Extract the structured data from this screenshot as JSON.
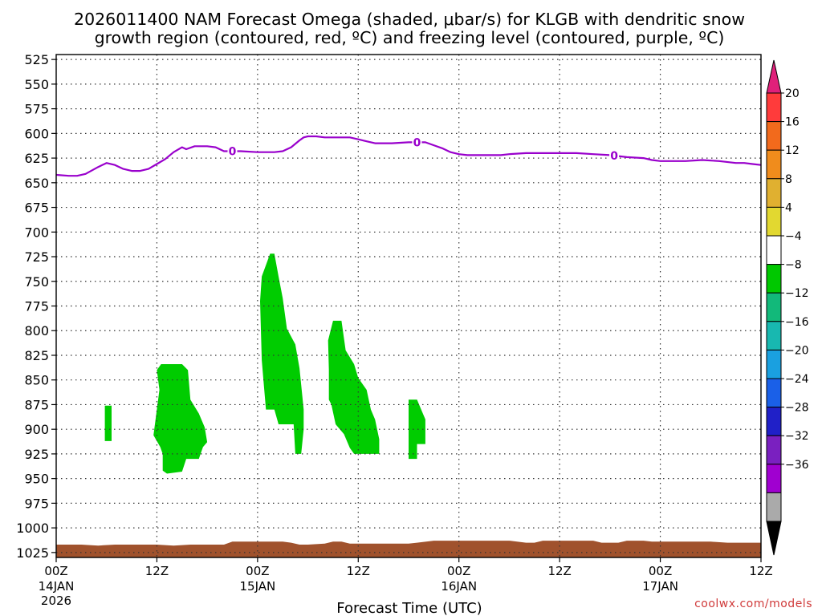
{
  "chart_data": {
    "type": "heatmap",
    "title": "2026011400 NAM Forecast Omega (shaded, μbar/s) for KLGB with dendritic snow",
    "subtitle": "growth region (contoured, red, ºC) and freezing level (contoured, purple, ºC)",
    "xlabel": "Forecast Time (UTC)",
    "ylabel": "",
    "credit": "coolwx.com/models",
    "xlim": [
      0,
      84
    ],
    "ylim": [
      1030,
      520
    ],
    "grid": true,
    "y_ticks": [
      525,
      550,
      575,
      600,
      625,
      650,
      675,
      700,
      725,
      750,
      775,
      800,
      825,
      850,
      875,
      900,
      925,
      950,
      975,
      1000,
      1025
    ],
    "x_ticks": [
      {
        "x": 0,
        "top": "00Z",
        "mid": "14JAN",
        "bot": "2026"
      },
      {
        "x": 12,
        "top": "12Z",
        "mid": "",
        "bot": ""
      },
      {
        "x": 24,
        "top": "00Z",
        "mid": "15JAN",
        "bot": ""
      },
      {
        "x": 36,
        "top": "12Z",
        "mid": "",
        "bot": ""
      },
      {
        "x": 48,
        "top": "00Z",
        "mid": "16JAN",
        "bot": ""
      },
      {
        "x": 60,
        "top": "12Z",
        "mid": "",
        "bot": ""
      },
      {
        "x": 72,
        "top": "00Z",
        "mid": "17JAN",
        "bot": ""
      },
      {
        "x": 84,
        "top": "12Z",
        "mid": "",
        "bot": ""
      }
    ],
    "freezing_level": {
      "label": "0",
      "color": "#9900cc",
      "label_x": [
        21.0,
        43.0,
        66.5
      ],
      "x": [
        0,
        1.5,
        2.5,
        3.5,
        5,
        6,
        7,
        8,
        9,
        10,
        11,
        12,
        13,
        14,
        15,
        15.5,
        16.5,
        18,
        19,
        20,
        22,
        24,
        25,
        26,
        27,
        28,
        29,
        29.5,
        30,
        31,
        32,
        33,
        34,
        35,
        36,
        37,
        38,
        40,
        42,
        43,
        44,
        45,
        46,
        47,
        48,
        49,
        51,
        53,
        54,
        56,
        58,
        60,
        62,
        64,
        66,
        68,
        70,
        71,
        72,
        73,
        75,
        77,
        79,
        81,
        82,
        83,
        84
      ],
      "y": [
        642,
        643,
        643,
        641,
        634,
        630,
        632,
        636,
        638,
        638,
        636,
        631,
        626,
        619,
        614,
        616,
        613,
        613,
        614,
        618,
        618,
        619,
        619,
        619,
        618,
        614,
        607,
        604,
        603,
        603,
        604,
        604,
        604,
        604,
        606,
        608,
        610,
        610,
        609,
        609,
        609,
        612,
        615,
        619,
        621,
        622,
        622,
        622,
        621,
        620,
        620,
        620,
        620,
        621,
        622,
        624,
        625,
        627,
        628,
        628,
        628,
        627,
        628,
        630,
        630,
        631,
        632
      ]
    },
    "omega_regions": [
      {
        "color": "#00cc00",
        "points": [
          [
            5.8,
            876
          ],
          [
            6.6,
            876
          ],
          [
            6.6,
            912
          ],
          [
            5.8,
            912
          ]
        ]
      },
      {
        "color": "#00cc00",
        "points": [
          [
            12.0,
            840
          ],
          [
            12.5,
            834
          ],
          [
            15.0,
            834
          ],
          [
            15.7,
            840
          ],
          [
            16.0,
            870
          ],
          [
            17.0,
            884
          ],
          [
            17.7,
            898
          ],
          [
            18.0,
            913
          ],
          [
            17.5,
            918
          ],
          [
            17.0,
            930
          ],
          [
            15.5,
            930
          ],
          [
            15.0,
            943
          ],
          [
            13.2,
            945
          ],
          [
            12.7,
            942
          ],
          [
            12.7,
            925
          ],
          [
            12.4,
            918
          ],
          [
            11.6,
            906
          ],
          [
            12.0,
            880
          ],
          [
            12.3,
            860
          ]
        ]
      },
      {
        "color": "#00cc00",
        "points": [
          [
            24.3,
            770
          ],
          [
            24.5,
            745
          ],
          [
            25.5,
            722
          ],
          [
            26.0,
            722
          ],
          [
            26.5,
            745
          ],
          [
            27.0,
            767
          ],
          [
            27.5,
            798
          ],
          [
            28.5,
            814
          ],
          [
            29.0,
            838
          ],
          [
            29.5,
            880
          ],
          [
            29.5,
            900
          ],
          [
            29.2,
            925
          ],
          [
            28.5,
            925
          ],
          [
            28.3,
            895
          ],
          [
            26.5,
            895
          ],
          [
            26.0,
            880
          ],
          [
            25.0,
            880
          ],
          [
            24.8,
            860
          ],
          [
            24.5,
            830
          ]
        ]
      },
      {
        "color": "#00cc00",
        "points": [
          [
            32.4,
            810
          ],
          [
            33.0,
            790
          ],
          [
            34.0,
            790
          ],
          [
            34.5,
            820
          ],
          [
            35.5,
            834
          ],
          [
            36.0,
            848
          ],
          [
            37.0,
            860
          ],
          [
            37.5,
            880
          ],
          [
            38.0,
            890
          ],
          [
            38.5,
            910
          ],
          [
            38.5,
            925
          ],
          [
            35.5,
            925
          ],
          [
            35.0,
            919
          ],
          [
            34.3,
            905
          ],
          [
            33.3,
            895
          ],
          [
            32.8,
            875
          ],
          [
            32.5,
            870
          ],
          [
            32.5,
            840
          ]
        ]
      },
      {
        "color": "#00cc00",
        "points": [
          [
            42.0,
            870
          ],
          [
            43.0,
            870
          ],
          [
            43.5,
            880
          ],
          [
            44.0,
            890
          ],
          [
            44.0,
            915
          ],
          [
            43.0,
            915
          ],
          [
            43.0,
            930
          ],
          [
            42.0,
            930
          ]
        ]
      }
    ],
    "ground": {
      "color": "#a0522d",
      "x": [
        0,
        3,
        5,
        7,
        10,
        12,
        14,
        16,
        20,
        21,
        23,
        27,
        28,
        29,
        30,
        32,
        33,
        34,
        35,
        38,
        40,
        42,
        43,
        45,
        48,
        54,
        56,
        57,
        58,
        60,
        62,
        64,
        65,
        67,
        68,
        70,
        71,
        72,
        78,
        80,
        84
      ],
      "y": [
        1017,
        1017,
        1018,
        1017,
        1017,
        1017,
        1018,
        1017,
        1017,
        1014,
        1014,
        1014,
        1015,
        1017,
        1017,
        1016,
        1014,
        1014,
        1016,
        1016,
        1016,
        1016,
        1015,
        1013,
        1013,
        1013,
        1015,
        1015,
        1013,
        1013,
        1013,
        1013,
        1015,
        1015,
        1013,
        1013,
        1014,
        1014,
        1014,
        1015,
        1015
      ]
    },
    "colorbar": {
      "labels": [
        "20",
        "16",
        "12",
        "8",
        "4",
        "-4",
        "-8",
        "-12",
        "-16",
        "-20",
        "-24",
        "-28",
        "-32",
        "-36"
      ],
      "top_color": "#e0207a",
      "colors": [
        "#ff3b3b",
        "#f26a1c",
        "#f08c1c",
        "#e0b030",
        "#e2d830",
        "#ffffff",
        "#00c800",
        "#12b97a",
        "#18b8b0",
        "#1aa0e0",
        "#1a60e8",
        "#2020c8",
        "#7a20c0",
        "#a000d0",
        "#aaaaaa"
      ],
      "bottom_color": "#000000"
    }
  }
}
